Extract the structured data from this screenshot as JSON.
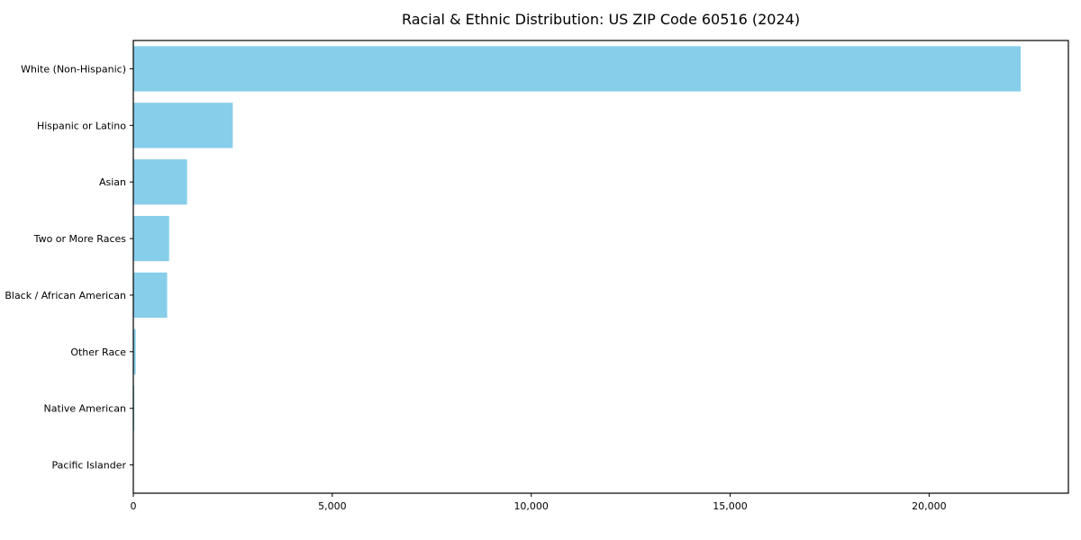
{
  "chart_data": {
    "type": "bar",
    "orientation": "horizontal",
    "title": "Racial & Ethnic Distribution: US ZIP Code 60516 (2024)",
    "categories": [
      "White (Non-Hispanic)",
      "Hispanic or Latino",
      "Asian",
      "Two or More Races",
      "Black / African American",
      "Other Race",
      "Native American",
      "Pacific Islander"
    ],
    "values": [
      22300,
      2500,
      1350,
      900,
      850,
      60,
      25,
      10
    ],
    "xlabel": "",
    "ylabel": "",
    "xlim": [
      0,
      23500
    ],
    "x_ticks": [
      0,
      5000,
      10000,
      15000,
      20000
    ],
    "x_tick_labels": [
      "0",
      "5,000",
      "10,000",
      "15,000",
      "20,000"
    ],
    "bar_color": "#87CEEB",
    "axis_color": "#000000",
    "background_color": "#ffffff",
    "grid": false,
    "legend": null
  }
}
